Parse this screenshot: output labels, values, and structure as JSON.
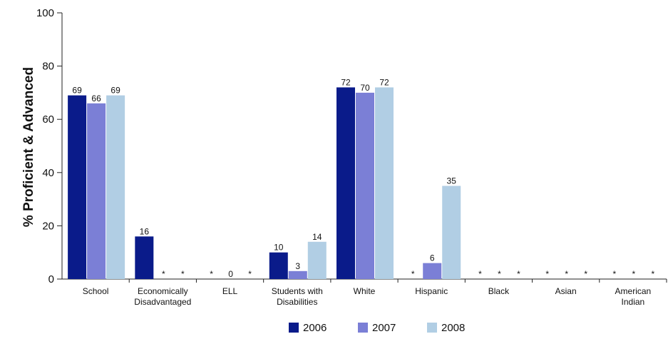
{
  "chart_data": {
    "type": "bar",
    "title": "",
    "xlabel": "",
    "ylabel": "% Proficient & Advanced",
    "ylim": [
      0,
      100
    ],
    "yticks": [
      "0",
      "20",
      "40",
      "60",
      "80",
      "100"
    ],
    "grid": false,
    "legend_position": "bottom",
    "categories": [
      [
        "School"
      ],
      [
        "Economically",
        "Disadvantaged"
      ],
      [
        "ELL"
      ],
      [
        "Students with",
        "Disabilities"
      ],
      [
        "White"
      ],
      [
        "Hispanic"
      ],
      [
        "Black"
      ],
      [
        "Asian"
      ],
      [
        "American",
        "Indian"
      ]
    ],
    "series": [
      {
        "name": "2006",
        "color": "#0a1b8a",
        "values": [
          69,
          16,
          null,
          10,
          72,
          null,
          null,
          null,
          null
        ],
        "labels": [
          "69",
          "16",
          "*",
          "10",
          "72",
          "*",
          "*",
          "*",
          "*"
        ]
      },
      {
        "name": "2007",
        "color": "#7b7fd6",
        "values": [
          66,
          null,
          0,
          3,
          70,
          6,
          null,
          null,
          null
        ],
        "labels": [
          "66",
          "*",
          "0",
          "3",
          "70",
          "6",
          "*",
          "*",
          "*"
        ]
      },
      {
        "name": "2008",
        "color": "#b1cee4",
        "values": [
          69,
          null,
          null,
          14,
          72,
          35,
          null,
          null,
          null
        ],
        "labels": [
          "69",
          "*",
          "*",
          "14",
          "72",
          "35",
          "*",
          "*",
          "*"
        ]
      }
    ]
  }
}
